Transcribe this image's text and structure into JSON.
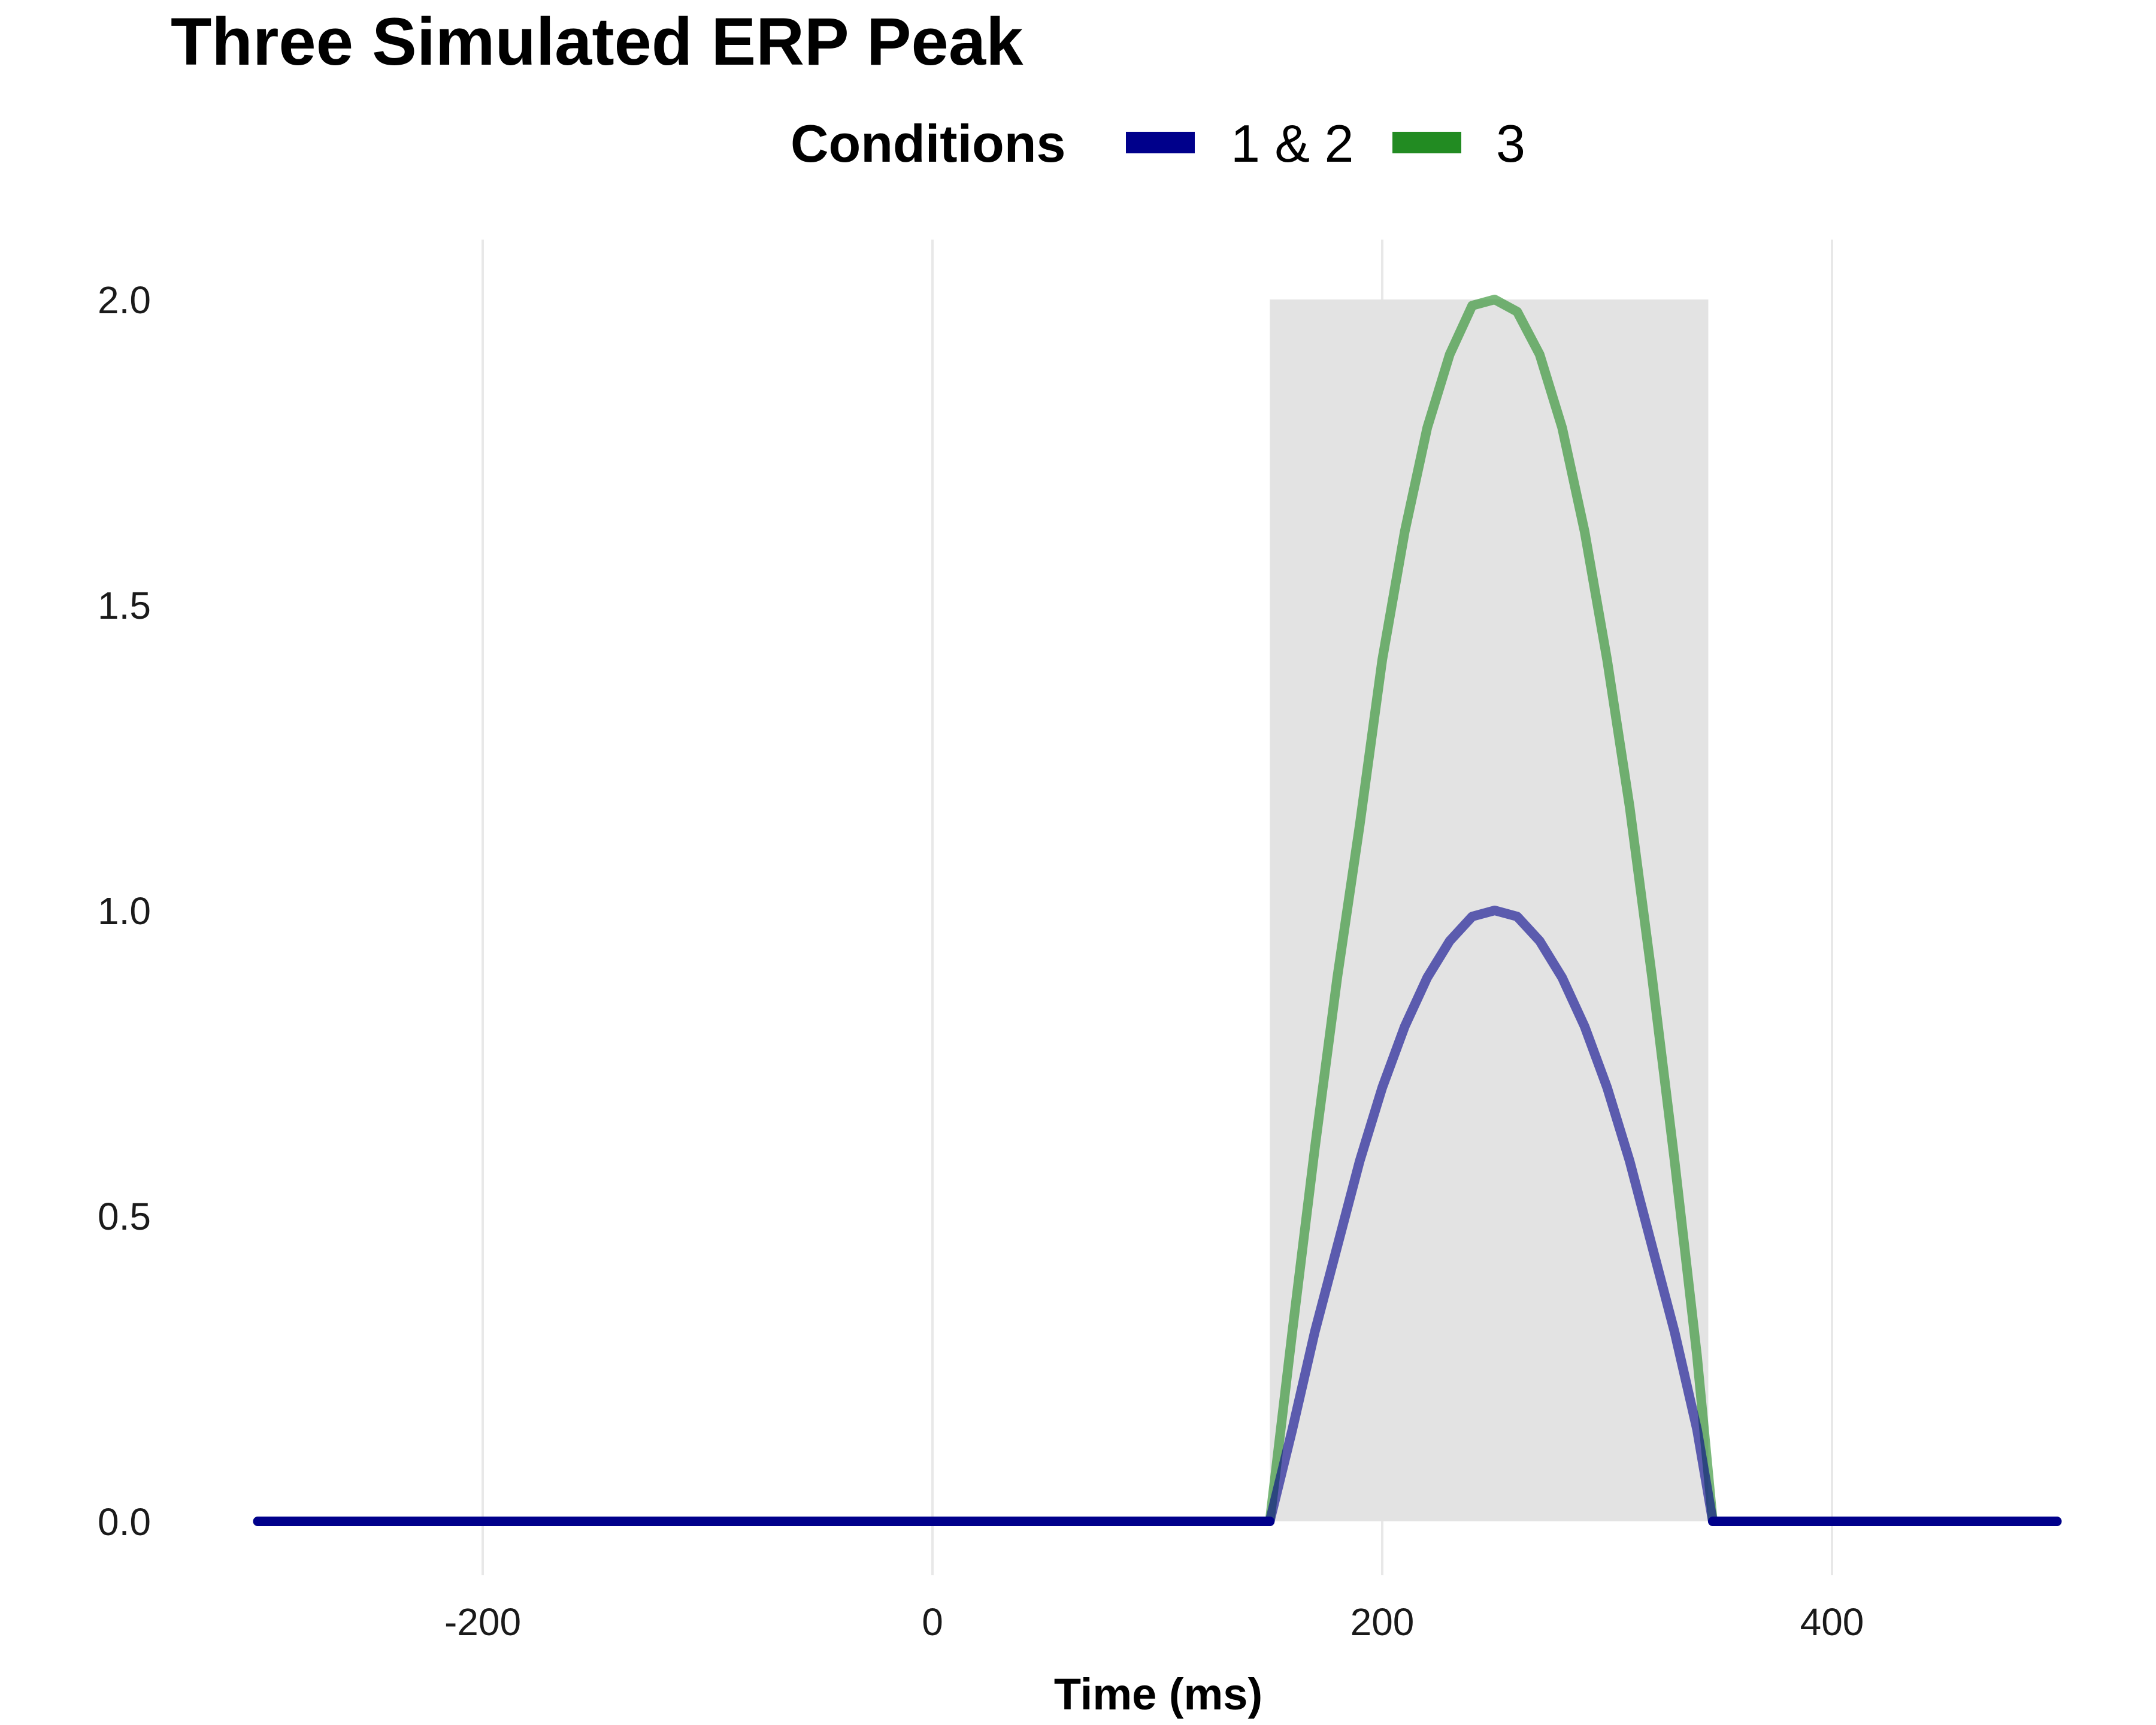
{
  "chart_data": {
    "type": "line",
    "title": "Three Simulated ERP Peak",
    "xlabel": "Time (ms)",
    "ylabel": "",
    "xlim": [
      -300,
      500
    ],
    "ylim": [
      0,
      2
    ],
    "x_ticks": [
      -200,
      0,
      200,
      400
    ],
    "x_tick_labels": [
      "-200",
      "0",
      "200",
      "400"
    ],
    "y_ticks": [
      0,
      0.5,
      1,
      1.5,
      2
    ],
    "y_tick_labels": [
      "0.0",
      "0.5",
      "1.0",
      "1.5",
      "2.0"
    ],
    "grid": "vertical major gridlines",
    "legend": {
      "title": "Conditions",
      "placement": "top",
      "entries": [
        {
          "label": "1 & 2",
          "color": "#00008B"
        },
        {
          "label": "3",
          "color": "#228B22"
        }
      ]
    },
    "highlight_window": {
      "x_start": 150,
      "x_end": 345,
      "y_start": 0,
      "y_end": 2,
      "color": "#e3e3e3"
    },
    "series": [
      {
        "name": "3",
        "color": "#228B22",
        "opacity": 0.6,
        "x": [
          -300,
          150,
          160,
          170,
          180,
          190,
          200,
          210,
          220,
          230,
          240,
          250,
          260,
          270,
          280,
          290,
          300,
          310,
          320,
          330,
          340,
          347,
          500
        ],
        "y": [
          0,
          0,
          0.31,
          0.61,
          0.89,
          1.14,
          1.41,
          1.62,
          1.79,
          1.91,
          1.99,
          2.0,
          1.98,
          1.91,
          1.79,
          1.62,
          1.41,
          1.17,
          0.89,
          0.59,
          0.27,
          0,
          0
        ]
      },
      {
        "name": "1 & 2",
        "color": "#00008B",
        "opacity": 0.6,
        "x": [
          150,
          160,
          170,
          180,
          190,
          200,
          210,
          220,
          230,
          240,
          250,
          260,
          270,
          280,
          290,
          300,
          310,
          320,
          330,
          340,
          347
        ],
        "y": [
          0,
          0.15,
          0.31,
          0.45,
          0.59,
          0.71,
          0.81,
          0.89,
          0.95,
          0.99,
          1.0,
          0.99,
          0.95,
          0.89,
          0.81,
          0.71,
          0.59,
          0.45,
          0.31,
          0.15,
          0
        ]
      },
      {
        "name": "1 & 2 baseline",
        "color": "#00008B",
        "opacity": 1,
        "segments": [
          {
            "x": [
              -300,
              150
            ],
            "y": [
              0,
              0
            ]
          },
          {
            "x": [
              347,
              500
            ],
            "y": [
              0,
              0
            ]
          }
        ]
      }
    ]
  }
}
